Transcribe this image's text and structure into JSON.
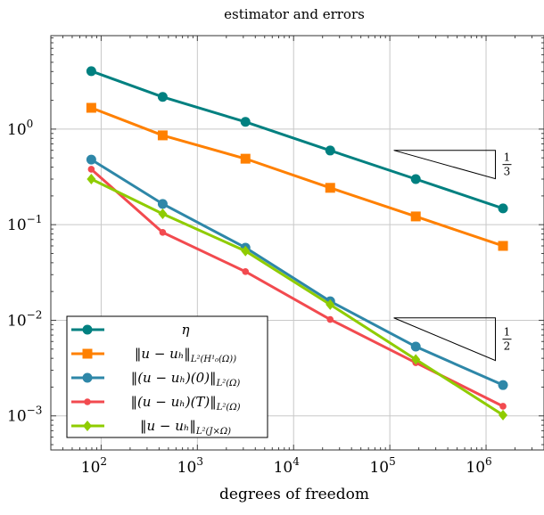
{
  "chart_data": {
    "type": "line",
    "title": "estimator and errors",
    "xlabel": "degrees of freedom",
    "ylabel": "",
    "xscale": "log",
    "yscale": "log",
    "xlim": [
      30,
      4000000
    ],
    "ylim": [
      0.00044,
      9.5
    ],
    "grid": true,
    "legend_position": "bottom-left",
    "x_ticks": [
      {
        "value": 100,
        "base": "10",
        "exp": "2"
      },
      {
        "value": 1000,
        "base": "10",
        "exp": "3"
      },
      {
        "value": 10000,
        "base": "10",
        "exp": "4"
      },
      {
        "value": 100000,
        "base": "10",
        "exp": "5"
      },
      {
        "value": 1000000,
        "base": "10",
        "exp": "6"
      }
    ],
    "y_ticks": [
      {
        "value": 1,
        "base": "10",
        "exp": "0"
      },
      {
        "value": 0.1,
        "base": "10",
        "exp": "−1"
      },
      {
        "value": 0.01,
        "base": "10",
        "exp": "−2"
      },
      {
        "value": 0.001,
        "base": "10",
        "exp": "−3"
      }
    ],
    "x": [
      79,
      436,
      3160,
      24000,
      186000,
      1500000
    ],
    "series": [
      {
        "name": "η",
        "label_main": "η",
        "label_sub": "",
        "color": "#008080",
        "marker": "circle",
        "values": [
          4.04,
          2.17,
          1.19,
          0.597,
          0.3,
          0.148
        ]
      },
      {
        "name": "‖u − u_h‖_{L²(H¹₀(Ω))}",
        "label_main": "‖u − uₕ‖",
        "label_sub": "L²(H¹₀(Ω))",
        "color": "#ff8000",
        "marker": "square",
        "values": [
          1.67,
          0.86,
          0.49,
          0.243,
          0.122,
          0.06
        ]
      },
      {
        "name": "‖(u − u_h)(0)‖_{L²(Ω)}",
        "label_main": "‖(u − uₕ)(0)‖",
        "label_sub": "L²(Ω)",
        "color": "#2e87a8",
        "marker": "circle",
        "values": [
          0.48,
          0.165,
          0.0575,
          0.0158,
          0.0053,
          0.0021
        ]
      },
      {
        "name": "‖(u − u_h)(T)‖_{L²(Ω)}",
        "label_main": "‖(u − uₕ)(T)‖",
        "label_sub": "L²(Ω)",
        "color": "#f24a4f",
        "marker": "star",
        "values": [
          0.38,
          0.083,
          0.0323,
          0.0102,
          0.0036,
          0.00126
        ]
      },
      {
        "name": "‖u − u_h‖_{L²(J×Ω)}",
        "label_main": "‖u − uₕ‖",
        "label_sub": "L²(J×Ω)",
        "color": "#8fcc00",
        "marker": "diamond",
        "values": [
          0.3,
          0.13,
          0.053,
          0.0146,
          0.0039,
          0.00102
        ]
      }
    ],
    "annotations": [
      {
        "type": "slope-triangle",
        "label_num": "1",
        "label_den": "3",
        "x_range": [
          110000,
          1250000
        ],
        "y_top": 0.6
      },
      {
        "type": "slope-triangle",
        "label_num": "1",
        "label_den": "2",
        "x_range": [
          110000,
          1250000
        ],
        "y_top": 0.0106
      }
    ]
  }
}
